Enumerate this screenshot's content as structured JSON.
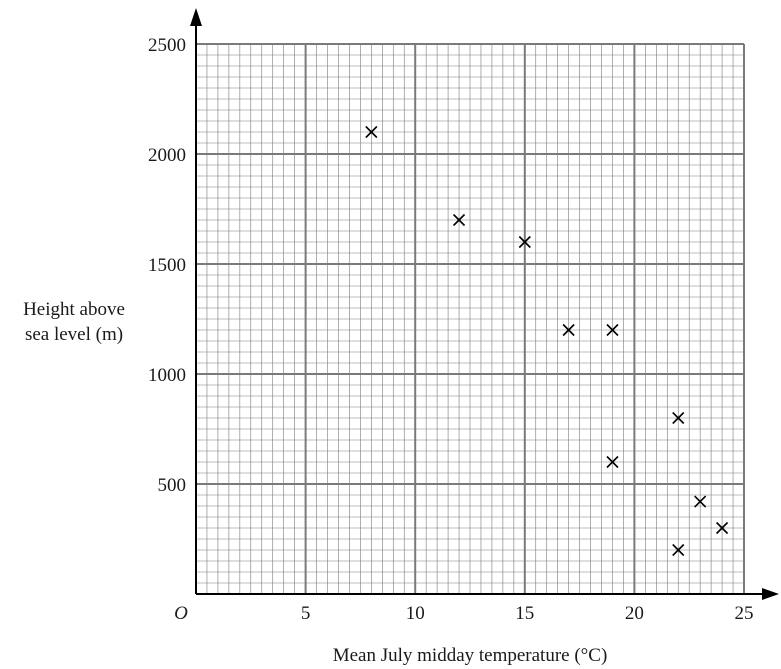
{
  "chart_data": {
    "type": "scatter",
    "title": "",
    "xlabel": "Mean July midday temperature (°C)",
    "ylabel": [
      "Height above",
      "sea level (m)"
    ],
    "origin_label": "O",
    "xlim": [
      0,
      25
    ],
    "ylim": [
      0,
      2500
    ],
    "x_major_step": 5,
    "y_major_step": 500,
    "x_minor_divisions": 10,
    "y_minor_divisions": 10,
    "x_ticks": [
      "5",
      "10",
      "15",
      "20",
      "25"
    ],
    "y_ticks": [
      "500",
      "1000",
      "1500",
      "2000",
      "2500"
    ],
    "grid": true,
    "marker": "×",
    "points": [
      {
        "x": 8,
        "y": 2100
      },
      {
        "x": 12,
        "y": 1700
      },
      {
        "x": 15,
        "y": 1600
      },
      {
        "x": 17,
        "y": 1200
      },
      {
        "x": 19,
        "y": 1200
      },
      {
        "x": 19,
        "y": 600
      },
      {
        "x": 22,
        "y": 800
      },
      {
        "x": 22,
        "y": 200
      },
      {
        "x": 23,
        "y": 420
      },
      {
        "x": 24,
        "y": 300
      }
    ],
    "colors": {
      "minor_grid": "#7a7a7a",
      "major_grid": "#7a7a7a",
      "axis": "#000000",
      "marker": "#000000"
    }
  }
}
